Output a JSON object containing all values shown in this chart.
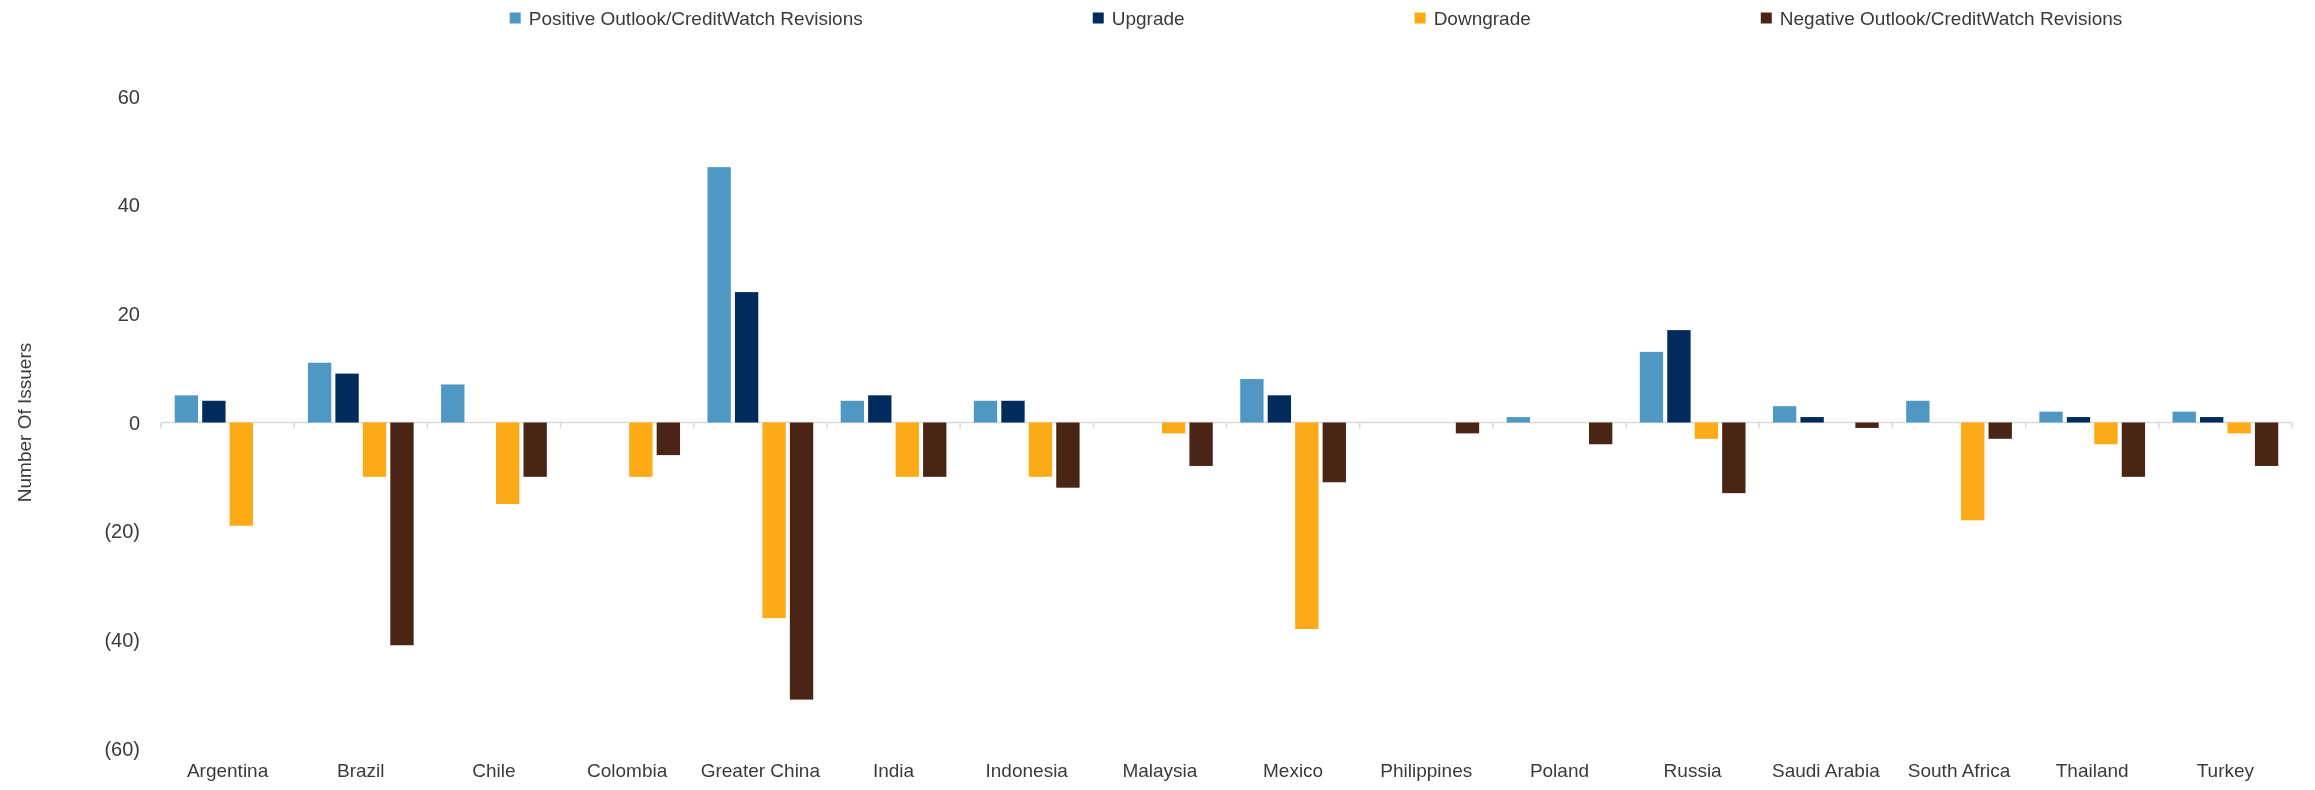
{
  "chart_data": {
    "type": "bar",
    "ylabel": "Number Of Issuers",
    "categories": [
      "Argentina",
      "Brazil",
      "Chile",
      "Colombia",
      "Greater China",
      "India",
      "Indonesia",
      "Malaysia",
      "Mexico",
      "Philippines",
      "Poland",
      "Russia",
      "Saudi Arabia",
      "South Africa",
      "Thailand",
      "Turkey"
    ],
    "series": [
      {
        "name": "Positive Outlook/CreditWatch Revisions",
        "color": "#4f98c3",
        "values": [
          5,
          11,
          7,
          0,
          47,
          4,
          4,
          0,
          8,
          0,
          1,
          13,
          3,
          4,
          2,
          2
        ]
      },
      {
        "name": "Upgrade",
        "color": "#002b5c",
        "values": [
          4,
          9,
          0,
          0,
          24,
          5,
          4,
          0,
          5,
          0,
          0,
          17,
          1,
          0,
          1,
          1
        ]
      },
      {
        "name": "Downgrade",
        "color": "#fdaa17",
        "values": [
          -19,
          -10,
          -15,
          -10,
          -36,
          -10,
          -10,
          -2,
          -38,
          0,
          0,
          -3,
          0,
          -18,
          -4,
          -2
        ]
      },
      {
        "name": "Negative Outlook/CreditWatch Revisions",
        "color": "#4a2414",
        "values": [
          0,
          -41,
          -10,
          -6,
          -51,
          -10,
          -12,
          -8,
          -11,
          -2,
          -4,
          -13,
          -1,
          -3,
          -10,
          -8
        ]
      }
    ],
    "ylim": [
      -60,
      60
    ],
    "yticks": [
      {
        "value": -60,
        "label": "(60)"
      },
      {
        "value": -40,
        "label": "(40)"
      },
      {
        "value": -20,
        "label": "(20)"
      },
      0,
      20,
      40,
      60
    ],
    "legend": "top"
  }
}
